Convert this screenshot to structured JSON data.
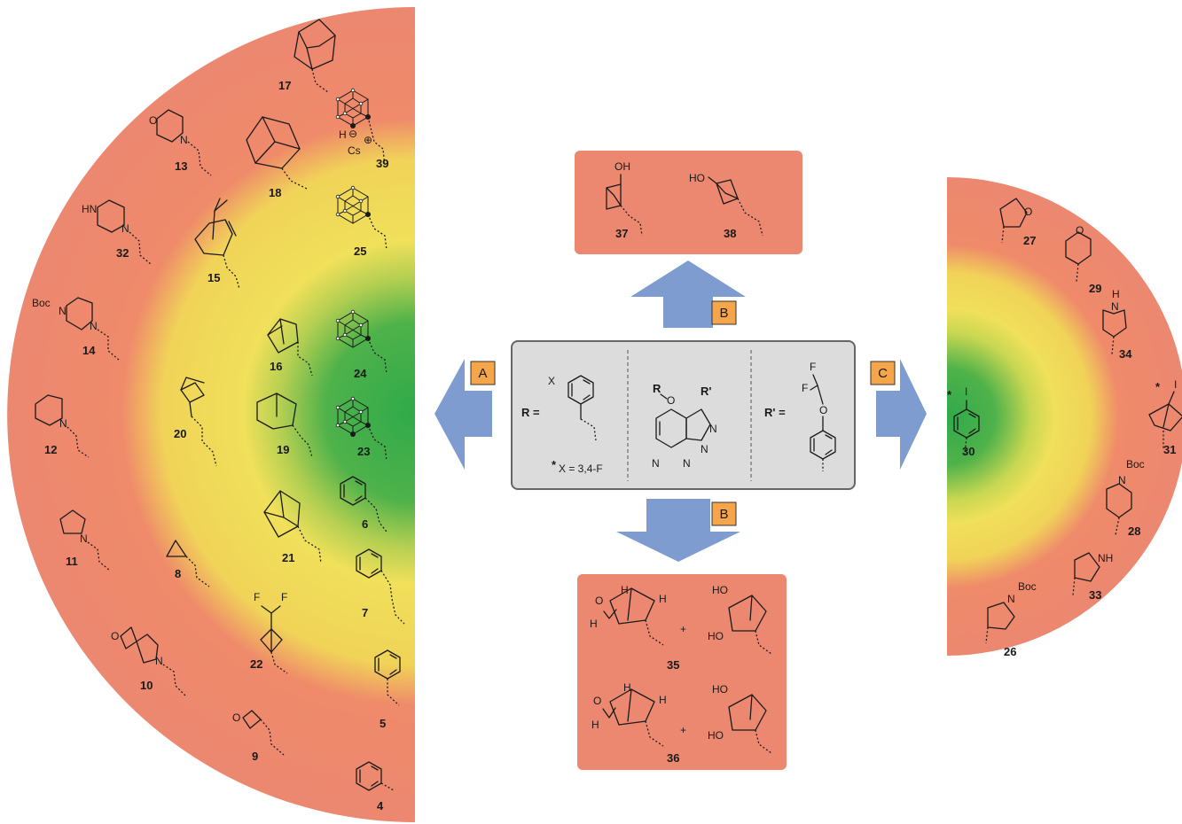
{
  "colors": {
    "gradient_stops": [
      "#2faa4a",
      "#7ec24a",
      "#f0e05a",
      "#ef8a6a",
      "#ec8870"
    ],
    "panel_red": "#ec8870",
    "core_box_fill": "#dcdcdc",
    "core_box_stroke": "#666666",
    "arrow_blue": "#7e9cd0",
    "tag_orange": "#f5a54a"
  },
  "tags": {
    "A": "A",
    "B_top": "B",
    "B_bottom": "B",
    "C": "C"
  },
  "core": {
    "r_prefix": "R =",
    "x_atom": "X",
    "x_note": "X = 3,4-F",
    "x_note_star": "*",
    "r_sub": "R",
    "o_atom": "O",
    "r_prime_sub": "R'",
    "n_atom": "N",
    "r_prime_prefix": "R' =",
    "f_atom": "F",
    "o_atom_2": "O"
  },
  "atoms": {
    "boc": "Boc",
    "hn": "HN",
    "n": "N",
    "o": "O",
    "oh": "OH",
    "ho": "HO",
    "h": "H",
    "nh": "NH",
    "f": "F",
    "i": "I",
    "cs": "Cs",
    "star": "*",
    "plus": "+",
    "minus_circle": "⊖",
    "plus_circle": "⊕"
  },
  "compounds": {
    "c17": "17",
    "c39": "39",
    "c13": "13",
    "c18": "18",
    "c32": "32",
    "c25": "25",
    "c15": "15",
    "c14": "14",
    "c16": "16",
    "c24": "24",
    "c12": "12",
    "c20": "20",
    "c19": "19",
    "c23": "23",
    "c6": "6",
    "c21": "21",
    "c11": "11",
    "c8": "8",
    "c7": "7",
    "c22": "22",
    "c10": "10",
    "c5": "5",
    "c9": "9",
    "c4": "4",
    "c37": "37",
    "c38": "38",
    "c35": "35",
    "c36": "36",
    "c27": "27",
    "c29": "29",
    "c34": "34",
    "c30": "30",
    "c31": "31",
    "c28": "28",
    "c33": "33",
    "c26": "26"
  }
}
